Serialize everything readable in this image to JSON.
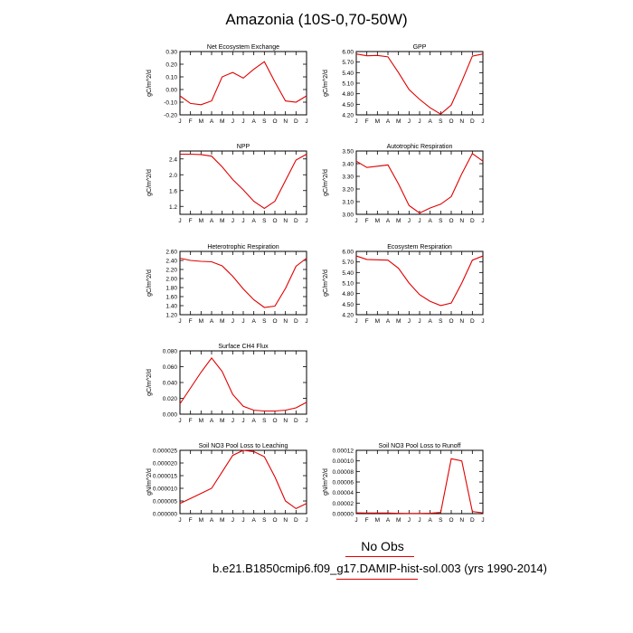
{
  "figure": {
    "title": "Amazonia (10S-0,70-50W)",
    "footer_label": "No Obs",
    "footer_case": "b.e21.B1850cmip6.f09_g17.DAMIP-hist-sol.003 (yrs 1990-2014)",
    "line_color": "#e00000"
  },
  "chart_data": [
    {
      "type": "line",
      "title": "Net Ecosystem Exchange",
      "ylabel": "gC/m^2/d",
      "categories": [
        "J",
        "F",
        "M",
        "A",
        "M",
        "J",
        "J",
        "A",
        "S",
        "O",
        "N",
        "D",
        "J"
      ],
      "values": [
        -0.05,
        -0.11,
        -0.12,
        -0.09,
        0.1,
        0.135,
        0.09,
        0.16,
        0.22,
        0.06,
        -0.09,
        -0.1,
        -0.05
      ],
      "ylim": [
        -0.2,
        0.3
      ],
      "yticks": [
        -0.2,
        -0.1,
        0.0,
        0.1,
        0.2,
        0.3
      ],
      "ytick_labels": [
        "-0.20",
        "-0.10",
        "0.00",
        "0.10",
        "0.20",
        "0.30"
      ]
    },
    {
      "type": "line",
      "title": "GPP",
      "ylabel": "gC/m^2/d",
      "categories": [
        "J",
        "F",
        "M",
        "A",
        "M",
        "J",
        "J",
        "A",
        "S",
        "O",
        "N",
        "D",
        "J"
      ],
      "values": [
        5.93,
        5.88,
        5.89,
        5.85,
        5.4,
        4.92,
        4.64,
        4.4,
        4.22,
        4.48,
        5.15,
        5.87,
        5.93
      ],
      "ylim": [
        4.2,
        6.0
      ],
      "yticks": [
        4.2,
        4.5,
        4.8,
        5.1,
        5.4,
        5.7,
        6.0
      ],
      "ytick_labels": [
        "4.20",
        "4.50",
        "4.80",
        "5.10",
        "5.40",
        "5.70",
        "6.00"
      ]
    },
    {
      "type": "line",
      "title": "NPP",
      "ylabel": "gC/m^2/d",
      "categories": [
        "J",
        "F",
        "M",
        "A",
        "M",
        "J",
        "J",
        "A",
        "S",
        "O",
        "N",
        "D",
        "J"
      ],
      "values": [
        2.52,
        2.52,
        2.51,
        2.47,
        2.2,
        1.88,
        1.62,
        1.33,
        1.15,
        1.33,
        1.85,
        2.37,
        2.52
      ],
      "ylim": [
        1.0,
        2.6
      ],
      "yticks": [
        1.2,
        1.6,
        2.0,
        2.4
      ],
      "ytick_labels": [
        "1.2",
        "1.6",
        "2.0",
        "2.4"
      ]
    },
    {
      "type": "line",
      "title": "Autotrophic Respiration",
      "ylabel": "gC/m^2/d",
      "categories": [
        "J",
        "F",
        "M",
        "A",
        "M",
        "J",
        "J",
        "A",
        "S",
        "O",
        "N",
        "D",
        "J"
      ],
      "values": [
        3.42,
        3.37,
        3.38,
        3.39,
        3.24,
        3.07,
        3.01,
        3.05,
        3.08,
        3.14,
        3.32,
        3.48,
        3.42
      ],
      "ylim": [
        3.0,
        3.5
      ],
      "yticks": [
        3.0,
        3.1,
        3.2,
        3.3,
        3.4,
        3.5
      ],
      "ytick_labels": [
        "3.00",
        "3.10",
        "3.20",
        "3.30",
        "3.40",
        "3.50"
      ]
    },
    {
      "type": "line",
      "title": "Heterotrophic Respiration",
      "ylabel": "gC/m^2/d",
      "categories": [
        "J",
        "F",
        "M",
        "A",
        "M",
        "J",
        "J",
        "A",
        "S",
        "O",
        "N",
        "D",
        "J"
      ],
      "values": [
        2.45,
        2.4,
        2.38,
        2.37,
        2.28,
        2.05,
        1.77,
        1.53,
        1.36,
        1.39,
        1.78,
        2.27,
        2.45
      ],
      "ylim": [
        1.2,
        2.6
      ],
      "yticks": [
        1.2,
        1.4,
        1.6,
        1.8,
        2.0,
        2.2,
        2.4,
        2.6
      ],
      "ytick_labels": [
        "1.20",
        "1.40",
        "1.60",
        "1.80",
        "2.00",
        "2.20",
        "2.40",
        "2.60"
      ]
    },
    {
      "type": "line",
      "title": "Ecosystem Respiration",
      "ylabel": "gC/m^2/d",
      "categories": [
        "J",
        "F",
        "M",
        "A",
        "M",
        "J",
        "J",
        "A",
        "S",
        "O",
        "N",
        "D",
        "J"
      ],
      "values": [
        5.87,
        5.77,
        5.76,
        5.75,
        5.52,
        5.1,
        4.77,
        4.58,
        4.46,
        4.53,
        5.1,
        5.75,
        5.87
      ],
      "ylim": [
        4.2,
        6.0
      ],
      "yticks": [
        4.2,
        4.5,
        4.8,
        5.1,
        5.4,
        5.7,
        6.0
      ],
      "ytick_labels": [
        "4.20",
        "4.50",
        "4.80",
        "5.10",
        "5.40",
        "5.70",
        "6.00"
      ]
    },
    {
      "type": "line",
      "title": "Surface CH4 Flux",
      "ylabel": "gC/m^2/d",
      "categories": [
        "J",
        "F",
        "M",
        "A",
        "M",
        "J",
        "J",
        "A",
        "S",
        "O",
        "N",
        "D",
        "J"
      ],
      "values": [
        0.013,
        0.033,
        0.053,
        0.071,
        0.054,
        0.025,
        0.01,
        0.005,
        0.004,
        0.004,
        0.005,
        0.008,
        0.015
      ],
      "ylim": [
        0.0,
        0.08
      ],
      "yticks": [
        0.0,
        0.02,
        0.04,
        0.06,
        0.08
      ],
      "ytick_labels": [
        "0.000",
        "0.020",
        "0.040",
        "0.060",
        "0.080"
      ]
    },
    {
      "type": "line",
      "title": "Soil NO3 Pool Loss to Leaching",
      "ylabel": "gN/m^2/d",
      "categories": [
        "J",
        "F",
        "M",
        "A",
        "M",
        "J",
        "J",
        "A",
        "S",
        "O",
        "N",
        "D",
        "J"
      ],
      "values": [
        4e-06,
        6e-06,
        8e-06,
        1e-05,
        1.65e-05,
        2.3e-05,
        2.5e-05,
        2.45e-05,
        2.25e-05,
        1.45e-05,
        5e-06,
        2e-06,
        4e-06
      ],
      "ylim": [
        0.0,
        2.5e-05
      ],
      "yticks": [
        0.0,
        5e-06,
        1e-05,
        1.5e-05,
        2e-05,
        2.5e-05
      ],
      "ytick_labels": [
        "0.000000",
        "0.000005",
        "0.000010",
        "0.000015",
        "0.000020",
        "0.000025"
      ]
    },
    {
      "type": "line",
      "title": "Soil NO3 Pool Loss to Runoff",
      "ylabel": "gN/m^2/d",
      "categories": [
        "J",
        "F",
        "M",
        "A",
        "M",
        "J",
        "J",
        "A",
        "S",
        "O",
        "N",
        "D",
        "J"
      ],
      "values": [
        1.5e-06,
        1.1e-06,
        1.2e-06,
        1.2e-06,
        6e-07,
        4e-07,
        4e-07,
        7e-07,
        2.2e-06,
        0.000104,
        0.0001,
        4e-06,
        1.5e-06
      ],
      "ylim": [
        0.0,
        0.00012
      ],
      "yticks": [
        0.0,
        2e-05,
        4e-05,
        6e-05,
        8e-05,
        0.0001,
        0.00012
      ],
      "ytick_labels": [
        "0.00000",
        "0.00002",
        "0.00004",
        "0.00006",
        "0.00008",
        "0.00010",
        "0.00012"
      ]
    }
  ]
}
